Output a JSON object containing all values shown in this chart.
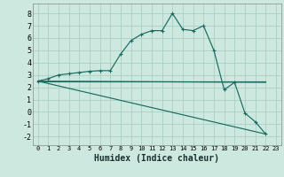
{
  "xlabel": "Humidex (Indice chaleur)",
  "background_color": "#cce8df",
  "grid_color": "#aacfc5",
  "line_color": "#1a6b60",
  "xlim": [
    -0.5,
    23.5
  ],
  "ylim": [
    -2.7,
    8.8
  ],
  "yticks": [
    -2,
    -1,
    0,
    1,
    2,
    3,
    4,
    5,
    6,
    7,
    8
  ],
  "xticks": [
    0,
    1,
    2,
    3,
    4,
    5,
    6,
    7,
    8,
    9,
    10,
    11,
    12,
    13,
    14,
    15,
    16,
    17,
    18,
    19,
    20,
    21,
    22,
    23
  ],
  "series_main": {
    "x": [
      0,
      1,
      2,
      3,
      4,
      5,
      6,
      7,
      8,
      9,
      10,
      11,
      12,
      13,
      14,
      15,
      16,
      17,
      18,
      19,
      20,
      21,
      22
    ],
    "y": [
      2.5,
      2.7,
      3.0,
      3.1,
      3.2,
      3.3,
      3.35,
      3.35,
      4.7,
      5.8,
      6.3,
      6.6,
      6.6,
      8.0,
      6.7,
      6.6,
      7.0,
      5.0,
      1.8,
      2.4,
      -0.1,
      -0.8,
      -1.8
    ]
  },
  "series_lines": [
    {
      "x0": 0,
      "y0": 2.5,
      "x1": 22,
      "y1": -1.8
    },
    {
      "x0": 0,
      "y0": 2.5,
      "x1": 22,
      "y1": 2.4
    },
    {
      "x0": 0,
      "y0": 2.5,
      "x1": 22,
      "y1": 2.5
    }
  ]
}
